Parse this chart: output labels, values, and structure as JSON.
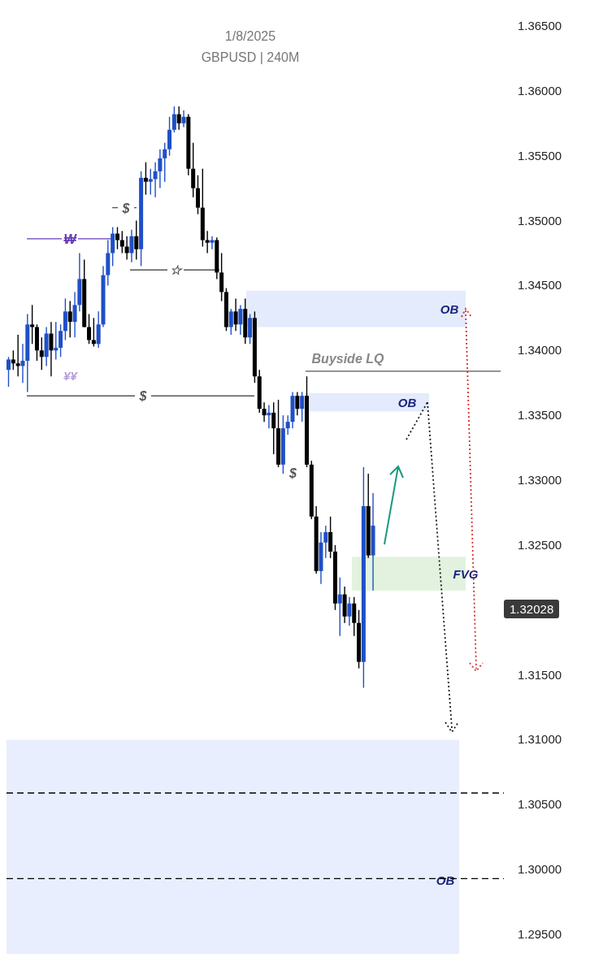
{
  "chart_data": {
    "type": "candlestick",
    "title": "1/8/2025",
    "subtitle": "GBPUSD | 240M",
    "categories": [
      null,
      null,
      null,
      null,
      null,
      null,
      null,
      null,
      null,
      null,
      null,
      null,
      null,
      null,
      null,
      null,
      null,
      null,
      null,
      null,
      null,
      null,
      null,
      null,
      null,
      null,
      null,
      null,
      null,
      null,
      null,
      null,
      null,
      null,
      null,
      null,
      null,
      null,
      null,
      null,
      null,
      null,
      null,
      null,
      null,
      null,
      null,
      null,
      null,
      null,
      null,
      null,
      null,
      null,
      null,
      null,
      null,
      null,
      null,
      null,
      null,
      null,
      null,
      null,
      null,
      null,
      null,
      null,
      null,
      null,
      null,
      null,
      null,
      null,
      null,
      null,
      null,
      null,
      null,
      null,
      null,
      null,
      null,
      null,
      null,
      null,
      null,
      null,
      null,
      null,
      null,
      null,
      null,
      null,
      null,
      null,
      null,
      null,
      null,
      null,
      null,
      null,
      null
    ],
    "ohlc": [
      [
        1.3385,
        1.3395,
        1.3372,
        1.3393
      ],
      [
        1.3393,
        1.34,
        1.3385,
        1.339
      ],
      [
        1.339,
        1.3412,
        1.338,
        1.3388
      ],
      [
        1.3388,
        1.3405,
        1.3375,
        1.3392
      ],
      [
        1.3392,
        1.3428,
        1.3368,
        1.342
      ],
      [
        1.342,
        1.3435,
        1.3405,
        1.3418
      ],
      [
        1.3418,
        1.342,
        1.3392,
        1.34
      ],
      [
        1.34,
        1.341,
        1.3385,
        1.3395
      ],
      [
        1.3395,
        1.3418,
        1.3388,
        1.3413
      ],
      [
        1.3413,
        1.3422,
        1.338,
        1.34
      ],
      [
        1.34,
        1.3422,
        1.3393,
        1.3402
      ],
      [
        1.3402,
        1.342,
        1.3395,
        1.3415
      ],
      [
        1.3415,
        1.344,
        1.3408,
        1.343
      ],
      [
        1.343,
        1.3438,
        1.341,
        1.3422
      ],
      [
        1.3422,
        1.3445,
        1.341,
        1.3435
      ],
      [
        1.3435,
        1.3475,
        1.343,
        1.3455
      ],
      [
        1.3455,
        1.347,
        1.3418,
        1.3418
      ],
      [
        1.3418,
        1.3428,
        1.3405,
        1.3408
      ],
      [
        1.3408,
        1.3425,
        1.3403,
        1.3405
      ],
      [
        1.3405,
        1.343,
        1.3402,
        1.342
      ],
      [
        1.342,
        1.3465,
        1.3418,
        1.3458
      ],
      [
        1.3458,
        1.3485,
        1.345,
        1.3475
      ],
      [
        1.3475,
        1.3495,
        1.3465,
        1.349
      ],
      [
        1.349,
        1.3495,
        1.3478,
        1.3485
      ],
      [
        1.3485,
        1.3492,
        1.3475,
        1.348
      ],
      [
        1.348,
        1.3488,
        1.347,
        1.3475
      ],
      [
        1.3475,
        1.3493,
        1.3468,
        1.3488
      ],
      [
        1.3488,
        1.35,
        1.347,
        1.3478
      ],
      [
        1.3478,
        1.3538,
        1.3465,
        1.3533
      ],
      [
        1.3533,
        1.3545,
        1.352,
        1.353
      ],
      [
        1.353,
        1.354,
        1.352,
        1.3532
      ],
      [
        1.3532,
        1.3545,
        1.3518,
        1.3538
      ],
      [
        1.3538,
        1.3555,
        1.3525,
        1.3548
      ],
      [
        1.3548,
        1.356,
        1.353,
        1.3555
      ],
      [
        1.3555,
        1.358,
        1.355,
        1.357
      ],
      [
        1.357,
        1.3588,
        1.3568,
        1.3582
      ],
      [
        1.3582,
        1.3588,
        1.357,
        1.3575
      ],
      [
        1.3575,
        1.3585,
        1.3572,
        1.358
      ],
      [
        1.358,
        1.3582,
        1.3535,
        1.354
      ],
      [
        1.354,
        1.356,
        1.3518,
        1.3525
      ],
      [
        1.3525,
        1.3535,
        1.3505,
        1.351
      ],
      [
        1.351,
        1.354,
        1.348,
        1.3485
      ],
      [
        1.3485,
        1.3492,
        1.3475,
        1.3483
      ],
      [
        1.3483,
        1.3488,
        1.3478,
        1.3485
      ],
      [
        1.3485,
        1.3487,
        1.3455,
        1.346
      ],
      [
        1.346,
        1.3475,
        1.3438,
        1.3445
      ],
      [
        1.3445,
        1.3448,
        1.3415,
        1.3418
      ],
      [
        1.3418,
        1.3432,
        1.3412,
        1.343
      ],
      [
        1.343,
        1.344,
        1.3415,
        1.342
      ],
      [
        1.342,
        1.3435,
        1.3412,
        1.3432
      ],
      [
        1.3432,
        1.344,
        1.3405,
        1.341
      ],
      [
        1.341,
        1.3428,
        1.3405,
        1.3425
      ],
      [
        1.3425,
        1.343,
        1.3375,
        1.338
      ],
      [
        1.338,
        1.3385,
        1.3352,
        1.3355
      ],
      [
        1.3355,
        1.336,
        1.3345,
        1.335
      ],
      [
        1.335,
        1.3358,
        1.334,
        1.3352
      ],
      [
        1.3352,
        1.336,
        1.332,
        1.334
      ],
      [
        1.334,
        1.3362,
        1.331,
        1.3312
      ],
      [
        1.3312,
        1.335,
        1.3305,
        1.334
      ],
      [
        1.334,
        1.335,
        1.3335,
        1.3345
      ],
      [
        1.3345,
        1.3368,
        1.334,
        1.3365
      ],
      [
        1.3365,
        1.3368,
        1.335,
        1.3355
      ],
      [
        1.3355,
        1.3368,
        1.3345,
        1.3365
      ],
      [
        1.3365,
        1.338,
        1.331,
        1.3312
      ],
      [
        1.3312,
        1.3315,
        1.327,
        1.3272
      ],
      [
        1.3272,
        1.328,
        1.3228,
        1.323
      ],
      [
        1.323,
        1.326,
        1.322,
        1.3252
      ],
      [
        1.3252,
        1.3265,
        1.324,
        1.326
      ],
      [
        1.326,
        1.3272,
        1.324,
        1.3245
      ],
      [
        1.3245,
        1.325,
        1.32,
        1.3205
      ],
      [
        1.3205,
        1.3225,
        1.318,
        1.3212
      ],
      [
        1.3212,
        1.3218,
        1.319,
        1.3195
      ],
      [
        1.3195,
        1.321,
        1.3188,
        1.3205
      ],
      [
        1.3205,
        1.321,
        1.318,
        1.319
      ],
      [
        1.319,
        1.32,
        1.3155,
        1.316
      ],
      [
        1.316,
        1.331,
        1.314,
        1.328
      ],
      [
        1.328,
        1.3305,
        1.324,
        1.3242
      ],
      [
        1.3242,
        1.329,
        1.3215,
        1.3265
      ],
      null,
      null,
      null,
      null,
      null,
      null,
      null,
      null,
      null,
      null,
      null,
      null,
      null,
      null,
      null,
      null,
      null,
      null,
      null,
      null,
      null,
      null,
      null,
      null,
      null
    ],
    "ylim": [
      1.292,
      1.3665
    ],
    "yticks": [
      {
        "value": 1.295,
        "label": "1.29500"
      },
      {
        "value": 1.3,
        "label": "1.30000"
      },
      {
        "value": 1.305,
        "label": "1.30500"
      },
      {
        "value": 1.31,
        "label": "1.31000"
      },
      {
        "value": 1.315,
        "label": "1.31500"
      },
      {
        "value": 1.325,
        "label": "1.32500"
      },
      {
        "value": 1.33,
        "label": "1.33000"
      },
      {
        "value": 1.335,
        "label": "1.33500"
      },
      {
        "value": 1.34,
        "label": "1.34000"
      },
      {
        "value": 1.345,
        "label": "1.34500"
      },
      {
        "value": 1.35,
        "label": "1.35000"
      },
      {
        "value": 1.355,
        "label": "1.35500"
      },
      {
        "value": 1.36,
        "label": "1.36000"
      },
      {
        "value": 1.365,
        "label": "1.36500"
      }
    ],
    "tick_labels": "y",
    "bands": [
      {
        "axis": "y",
        "from": 1.3418,
        "to": 1.3446,
        "label": "OB",
        "color": "#e3ebfd"
      },
      {
        "axis": "y",
        "from": 1.3353,
        "to": 1.3367,
        "label": "OB",
        "color": "#e3ebfd"
      },
      {
        "axis": "y",
        "from": 1.3215,
        "to": 1.3241,
        "label": "FVG",
        "color": "#e2f2de"
      },
      {
        "axis": "y",
        "from": 1.2935,
        "to": 1.31,
        "label": "OB",
        "color": "#e8eefd"
      }
    ],
    "ref_lines": [
      {
        "axis": "y",
        "value": 1.351,
        "label": "$",
        "color": "#555555",
        "line_style": "dashed"
      },
      {
        "axis": "y",
        "value": 1.3486,
        "label": "₩",
        "color": "#673ab7"
      },
      {
        "axis": "y",
        "value": 1.3462,
        "label": "☆",
        "color": "#555555"
      },
      {
        "axis": "y",
        "value": 1.3384,
        "label": "Buyside LQ",
        "color": "#555555"
      },
      {
        "axis": "y",
        "value": 1.3365,
        "label": "$",
        "color": "#555555"
      },
      {
        "axis": "y",
        "value": 1.3059,
        "color": "#000000",
        "line_style": "dashed"
      },
      {
        "axis": "y",
        "value": 1.2993,
        "color": "#000000",
        "line_style": "dashed"
      }
    ],
    "annotations": [
      "¥¥",
      "$",
      "1.32028"
    ]
  }
}
